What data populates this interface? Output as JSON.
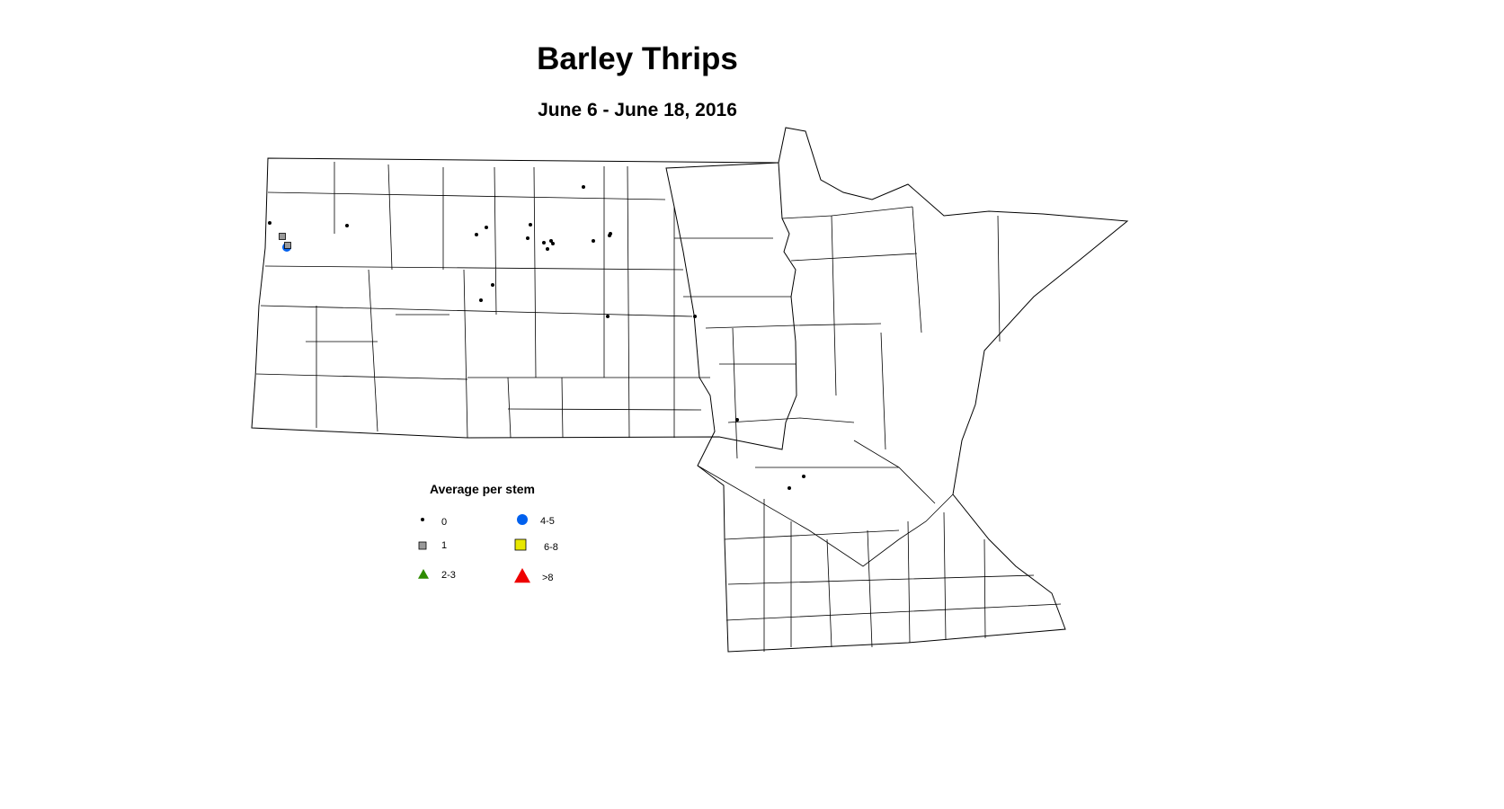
{
  "title": "Barley Thrips",
  "subtitle": "June 6 - June 18, 2016",
  "legend": {
    "title": "Average per stem",
    "items": [
      {
        "label": "0",
        "symbol": "dot",
        "color": "#000000"
      },
      {
        "label": "1",
        "symbol": "square",
        "color": "#999999"
      },
      {
        "label": "2-3",
        "symbol": "triangle",
        "color": "#2e8b00"
      },
      {
        "label": "4-5",
        "symbol": "circle",
        "color": "#0060ee"
      },
      {
        "label": "6-8",
        "symbol": "square",
        "color": "#e8e800"
      },
      {
        "label": ">8",
        "symbol": "triangle",
        "color": "#ee0000"
      }
    ]
  }
}
